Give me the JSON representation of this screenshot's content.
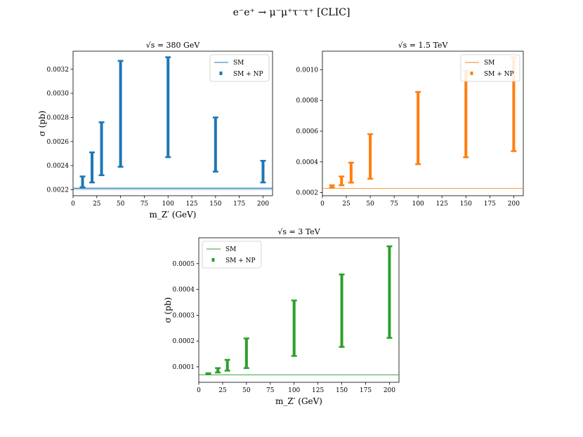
{
  "suptitle": "e⁻e⁺ → μ⁻μ⁺τ⁻τ⁺ [CLIC]",
  "chart_data": [
    {
      "type": "errorbar",
      "title": "√s = 380 GeV",
      "xlabel": "m_Z′ (GeV)",
      "ylabel": "σ (pb)",
      "color": "#1f77b4",
      "xlim": [
        0,
        210
      ],
      "ylim": [
        0.00215,
        0.00335
      ],
      "xticks": [
        0,
        25,
        50,
        75,
        100,
        125,
        150,
        175,
        200
      ],
      "yticks": [
        0.0022,
        0.0024,
        0.0026,
        0.0028,
        0.003,
        0.0032
      ],
      "ytick_labels": [
        "0.0022",
        "0.0024",
        "0.0026",
        "0.0028",
        "0.0030",
        "0.0032"
      ],
      "legend": [
        "SM",
        "SM + NP"
      ],
      "legend_loc": "upper right",
      "sm": {
        "name": "SM",
        "value": 0.00221,
        "band": [
          0.002195,
          0.002222
        ]
      },
      "np": {
        "name": "SM + NP",
        "points": [
          {
            "x": 10,
            "low": 0.00222,
            "high": 0.00231
          },
          {
            "x": 20,
            "low": 0.00226,
            "high": 0.00251
          },
          {
            "x": 30,
            "low": 0.00232,
            "high": 0.00276
          },
          {
            "x": 50,
            "low": 0.00239,
            "high": 0.00327
          },
          {
            "x": 100,
            "low": 0.00247,
            "high": 0.0033
          },
          {
            "x": 150,
            "low": 0.00235,
            "high": 0.0028
          },
          {
            "x": 200,
            "low": 0.00226,
            "high": 0.00244
          }
        ]
      }
    },
    {
      "type": "errorbar",
      "title": "√s = 1.5 TeV",
      "xlabel": "",
      "ylabel": "",
      "color": "#ff7f0e",
      "xlim": [
        0,
        210
      ],
      "ylim": [
        0.00018,
        0.00112
      ],
      "xticks": [
        0,
        25,
        50,
        75,
        100,
        125,
        150,
        175,
        200
      ],
      "yticks": [
        0.0002,
        0.0004,
        0.0006,
        0.0008,
        0.001
      ],
      "ytick_labels": [
        "0.0002",
        "0.0004",
        "0.0006",
        "0.0008",
        "0.0010"
      ],
      "legend": [
        "SM",
        "SM + NP"
      ],
      "legend_loc": "upper right",
      "sm": {
        "name": "SM",
        "value": 0.000228,
        "band": [
          0.000226,
          0.00023
        ]
      },
      "np": {
        "name": "SM + NP",
        "points": [
          {
            "x": 10,
            "low": 0.000233,
            "high": 0.000248
          },
          {
            "x": 20,
            "low": 0.000248,
            "high": 0.000305
          },
          {
            "x": 30,
            "low": 0.000265,
            "high": 0.000395
          },
          {
            "x": 50,
            "low": 0.00029,
            "high": 0.00058
          },
          {
            "x": 100,
            "low": 0.000385,
            "high": 0.000855
          },
          {
            "x": 150,
            "low": 0.00043,
            "high": 0.000993
          },
          {
            "x": 200,
            "low": 0.00047,
            "high": 0.00108
          }
        ]
      }
    },
    {
      "type": "errorbar",
      "title": "√s = 3 TeV",
      "xlabel": "m_Z′ (GeV)",
      "ylabel": "σ (pb)",
      "color": "#2ca02c",
      "xlim": [
        0,
        210
      ],
      "ylim": [
        4e-05,
        0.0006
      ],
      "xticks": [
        0,
        25,
        50,
        75,
        100,
        125,
        150,
        175,
        200
      ],
      "yticks": [
        0.0001,
        0.0002,
        0.0003,
        0.0004,
        0.0005
      ],
      "ytick_labels": [
        "0.0001",
        "0.0002",
        "0.0003",
        "0.0004",
        "0.0005"
      ],
      "legend": [
        "SM",
        "SM + NP"
      ],
      "legend_loc": "upper left",
      "sm": {
        "name": "SM",
        "value": 6.9e-05,
        "band": [
          6.8e-05,
          7e-05
        ]
      },
      "np": {
        "name": "SM + NP",
        "points": [
          {
            "x": 10,
            "low": 7.1e-05,
            "high": 7.5e-05
          },
          {
            "x": 20,
            "low": 7.8e-05,
            "high": 9.5e-05
          },
          {
            "x": 30,
            "low": 8.5e-05,
            "high": 0.000127
          },
          {
            "x": 50,
            "low": 9.5e-05,
            "high": 0.00021
          },
          {
            "x": 100,
            "low": 0.000142,
            "high": 0.000357
          },
          {
            "x": 150,
            "low": 0.000177,
            "high": 0.000458
          },
          {
            "x": 200,
            "low": 0.000212,
            "high": 0.000567
          }
        ]
      }
    }
  ]
}
